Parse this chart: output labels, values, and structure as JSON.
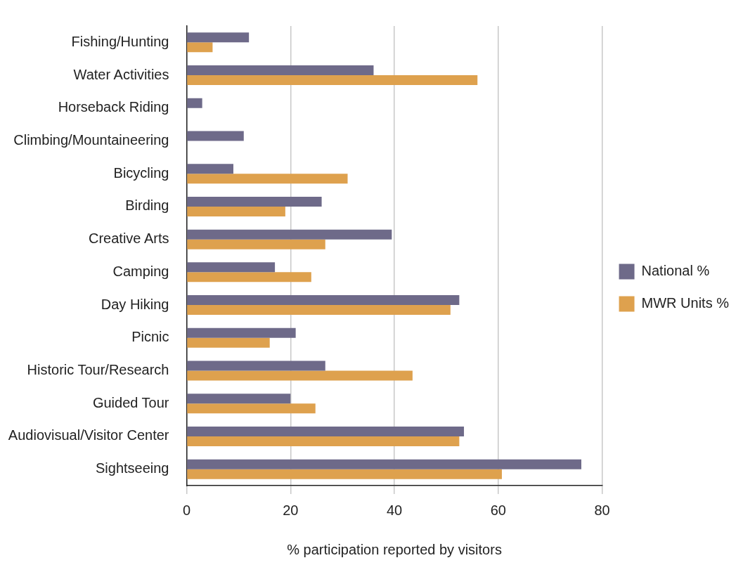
{
  "chart_data": {
    "type": "bar",
    "orientation": "horizontal",
    "xlabel": "% participation reported by visitors",
    "categories": [
      "Fishing/Hunting",
      "Water Activities",
      "Horseback Riding",
      "Climbing/Mountaineering",
      "Bicycling",
      "Birding",
      "Creative Arts",
      "Camping",
      "Day Hiking",
      "Picnic",
      "Historic Tour/Research",
      "Guided Tour",
      "Audiovisual/Visitor Center",
      "Sightseeing"
    ],
    "series": [
      {
        "name": "National %",
        "color": "#6e6a89",
        "values": [
          12,
          36,
          3,
          11,
          9,
          26,
          39.5,
          17,
          52.5,
          21,
          26.7,
          20,
          53.4,
          76
        ]
      },
      {
        "name": "MWR Units %",
        "color": "#dea14e",
        "values": [
          5,
          56,
          null,
          null,
          31,
          19,
          26.7,
          24,
          50.8,
          16,
          43.5,
          24.8,
          52.5,
          60.7
        ]
      }
    ],
    "xlim": [
      0,
      80
    ],
    "xticks": [
      0,
      20,
      40,
      60,
      80
    ],
    "grid": "x",
    "legend": "right"
  }
}
